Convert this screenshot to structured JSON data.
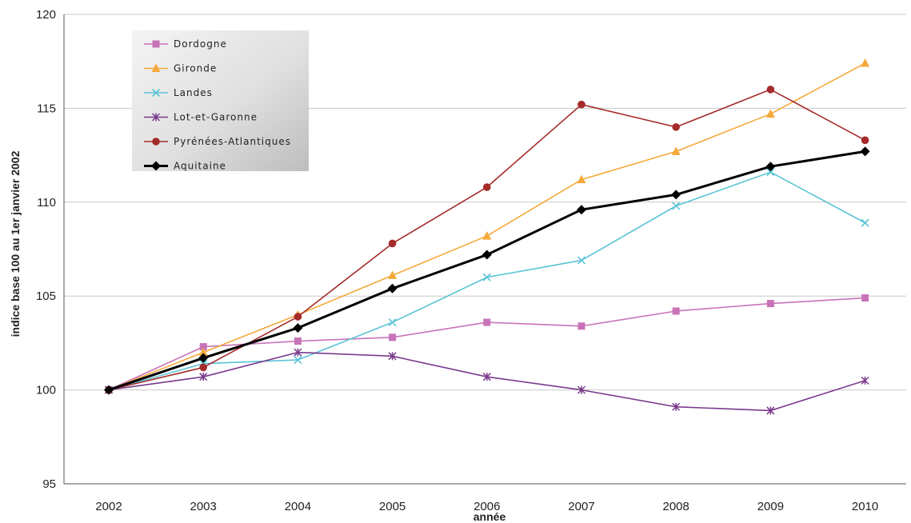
{
  "chart_data": {
    "type": "line",
    "title": "",
    "xlabel": "année",
    "ylabel": "indice base 100 au 1er janvier 2002",
    "x": [
      "2002",
      "2003",
      "2004",
      "2005",
      "2006",
      "2007",
      "2008",
      "2009",
      "2010"
    ],
    "ylim": [
      95,
      120
    ],
    "yticks": [
      "95",
      "100",
      "105",
      "110",
      "115",
      "120"
    ],
    "grid": "horizontal",
    "legend_position": "top-left",
    "series": [
      {
        "name": "Dordogne",
        "color": "#c873b8",
        "marker": "square",
        "values": [
          100,
          102.3,
          102.6,
          102.8,
          103.6,
          103.4,
          104.2,
          104.6,
          104.9
        ]
      },
      {
        "name": "Gironde",
        "color": "#f5a93a",
        "marker": "triangle",
        "values": [
          100,
          102.0,
          104.0,
          106.1,
          108.2,
          111.2,
          112.7,
          114.7,
          117.4
        ]
      },
      {
        "name": "Landes",
        "color": "#5bc4d6",
        "marker": "x",
        "values": [
          100,
          101.4,
          101.6,
          103.6,
          106.0,
          106.9,
          109.8,
          111.6,
          108.9
        ]
      },
      {
        "name": "Lot-et-Garonne",
        "color": "#7a3a8c",
        "marker": "star",
        "values": [
          100,
          100.7,
          102.0,
          101.8,
          100.7,
          100.0,
          99.1,
          98.9,
          100.5
        ]
      },
      {
        "name": "Pyrénées-Atlantiques",
        "color": "#a52a2a",
        "marker": "circle",
        "values": [
          100,
          101.2,
          103.9,
          107.8,
          110.8,
          115.2,
          114.0,
          116.0,
          113.3
        ]
      },
      {
        "name": "Aquitaine",
        "color": "#000000",
        "marker": "diamond",
        "values": [
          100,
          101.7,
          103.3,
          105.4,
          107.2,
          109.6,
          110.4,
          111.9,
          112.7
        ]
      }
    ]
  }
}
